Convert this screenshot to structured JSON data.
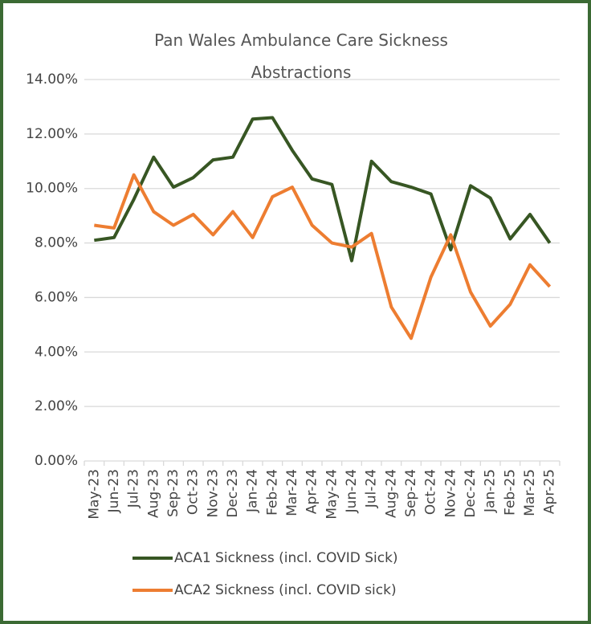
{
  "chart_data": {
    "type": "line",
    "title": "Pan Wales Ambulance Care Sickness Abstractions",
    "categories": [
      "May-23",
      "Jun-23",
      "Jul-23",
      "Aug-23",
      "Sep-23",
      "Oct-23",
      "Nov-23",
      "Dec-23",
      "Jan-24",
      "Feb-24",
      "Mar-24",
      "Apr-24",
      "May-24",
      "Jun-24",
      "Jul-24",
      "Aug-24",
      "Sep-24",
      "Oct-24",
      "Nov-24",
      "Dec-24",
      "Jan-25",
      "Feb-25",
      "Mar-25",
      "Apr-25"
    ],
    "series": [
      {
        "name": "ACA1 Sickness (incl. COVID Sick)",
        "color": "#375623",
        "values": [
          8.1,
          8.2,
          9.6,
          11.15,
          10.05,
          10.4,
          11.05,
          11.15,
          12.55,
          12.6,
          11.4,
          10.35,
          10.15,
          7.35,
          11.0,
          10.25,
          10.05,
          9.8,
          7.75,
          10.1,
          9.65,
          8.15,
          9.05,
          8.0
        ]
      },
      {
        "name": "ACA2 Sickness (incl. COVID sick)",
        "color": "#ed7d31",
        "values": [
          8.65,
          8.55,
          10.5,
          9.15,
          8.65,
          9.05,
          8.3,
          9.15,
          8.2,
          9.7,
          10.05,
          8.65,
          8.0,
          7.85,
          8.35,
          5.65,
          4.5,
          6.75,
          8.3,
          6.2,
          4.95,
          5.75,
          7.2,
          6.4
        ]
      }
    ],
    "ylim": [
      0,
      14
    ],
    "yticks": [
      {
        "value": 0,
        "label": "0.00%"
      },
      {
        "value": 2,
        "label": "2.00%"
      },
      {
        "value": 4,
        "label": "4.00%"
      },
      {
        "value": 6,
        "label": "6.00%"
      },
      {
        "value": 8,
        "label": "8.00%"
      },
      {
        "value": 10,
        "label": "10.00%"
      },
      {
        "value": 12,
        "label": "12.00%"
      },
      {
        "value": 14,
        "label": "14.00%"
      }
    ],
    "grid": true,
    "legend": "bottom"
  }
}
